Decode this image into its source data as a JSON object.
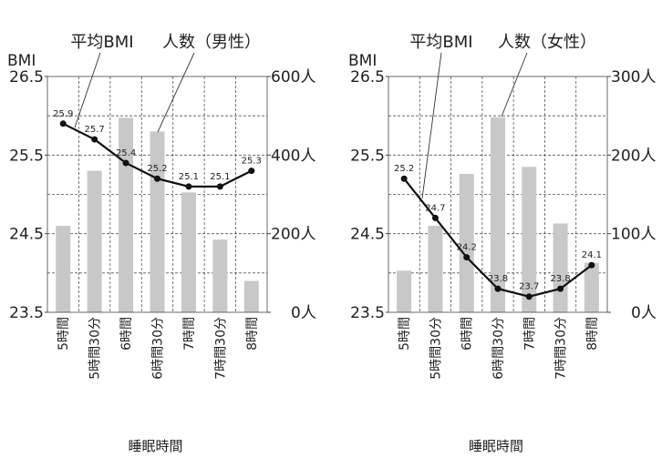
{
  "chart_data": [
    {
      "type": "bar+line",
      "categories": [
        "5時間",
        "5時間30分",
        "6時間",
        "6時間30分",
        "7時間",
        "7時間30分",
        "8時間"
      ],
      "xlabel": "睡眠時間",
      "ylabel_left": "BMI",
      "ylim_left": [
        23.5,
        26.5
      ],
      "yticks_left": [
        "26.5",
        "25.5",
        "24.5",
        "23.5"
      ],
      "ylim_right": [
        0,
        600
      ],
      "yticks_right": [
        "600人",
        "400人",
        "200人",
        "0人"
      ],
      "grid": true,
      "series": [
        {
          "name": "人数（男性）",
          "kind": "bar",
          "axis": "right",
          "values": [
            220,
            360,
            495,
            460,
            305,
            185,
            80
          ],
          "color": "#c8c8c8"
        },
        {
          "name": "平均BMI",
          "kind": "line",
          "axis": "left",
          "values": [
            25.9,
            25.7,
            25.4,
            25.2,
            25.1,
            25.1,
            25.3
          ],
          "labels": [
            "25.9",
            "25.7",
            "25.4",
            "25.2",
            "25.1",
            "25.1",
            "25.3"
          ],
          "color": "#111111"
        }
      ]
    },
    {
      "type": "bar+line",
      "categories": [
        "5時間",
        "5時間30分",
        "6時間",
        "6時間30分",
        "7時間",
        "7時間30分",
        "8時間"
      ],
      "xlabel": "睡眠時間",
      "ylabel_left": "BMI",
      "ylim_left": [
        23.5,
        26.5
      ],
      "yticks_left": [
        "26.5",
        "25.5",
        "24.5",
        "23.5"
      ],
      "ylim_right": [
        0,
        300
      ],
      "yticks_right": [
        "300人",
        "200人",
        "100人",
        "0人"
      ],
      "grid": true,
      "series": [
        {
          "name": "人数（女性）",
          "kind": "bar",
          "axis": "right",
          "values": [
            53,
            110,
            176,
            248,
            185,
            113,
            63
          ],
          "color": "#c8c8c8"
        },
        {
          "name": "平均BMI",
          "kind": "line",
          "axis": "left",
          "values": [
            25.2,
            24.7,
            24.2,
            23.8,
            23.7,
            23.8,
            24.1
          ],
          "labels": [
            "25.2",
            "24.7",
            "24.2",
            "23.8",
            "23.7",
            "23.8",
            "24.1"
          ],
          "color": "#111111"
        }
      ]
    }
  ]
}
